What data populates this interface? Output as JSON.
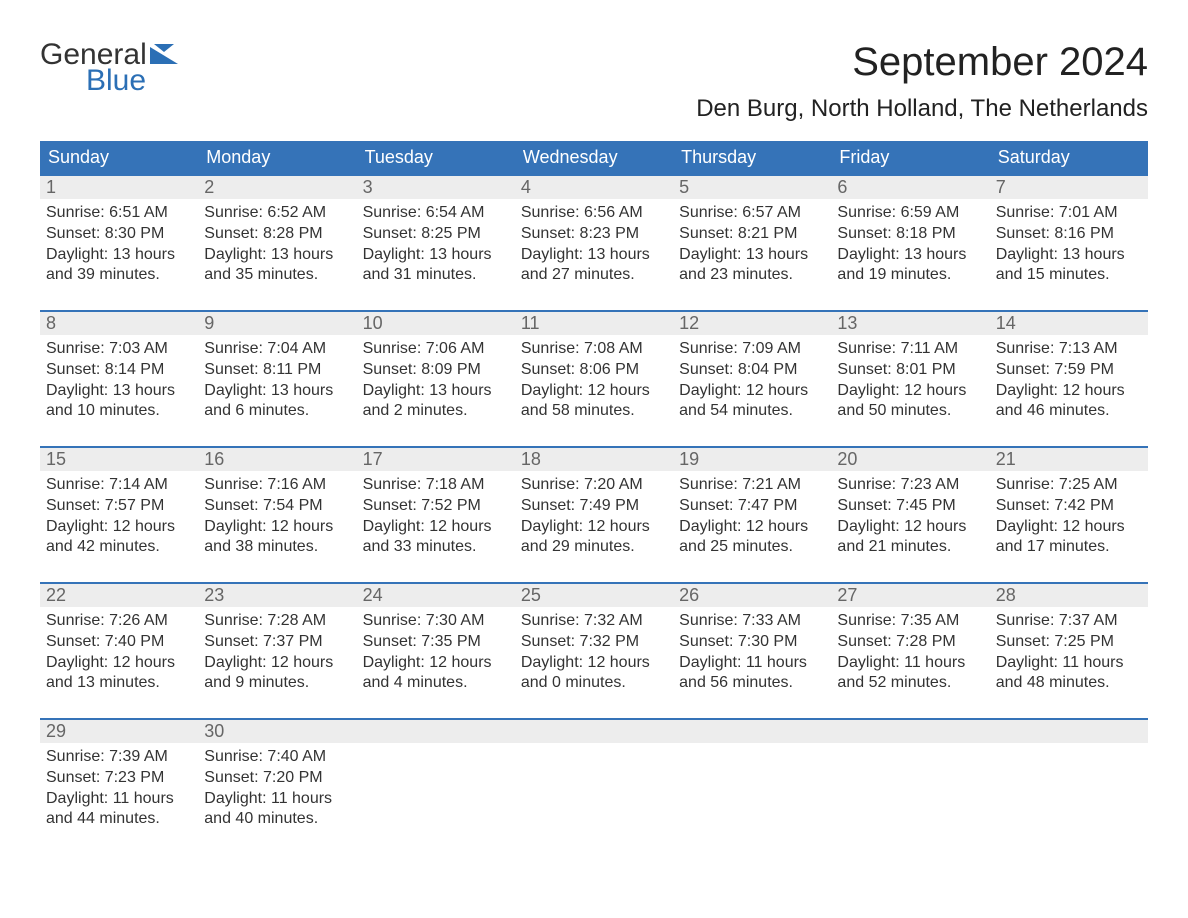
{
  "logo": {
    "top": "General",
    "bottom": "Blue"
  },
  "title": "September 2024",
  "location": "Den Burg, North Holland, The Netherlands",
  "colors": {
    "header_bg": "#3573b8",
    "header_text": "#ffffff",
    "daynum_bg": "#ededed",
    "daynum_text": "#666666",
    "body_text": "#333333",
    "week_border": "#3573b8",
    "logo_blue": "#2b6fb5",
    "page_bg": "#ffffff"
  },
  "typography": {
    "title_fontsize": 40,
    "location_fontsize": 24,
    "dow_fontsize": 18,
    "daynum_fontsize": 18,
    "body_fontsize": 16
  },
  "layout": {
    "columns": 7,
    "rows": 5,
    "first_day": "Sunday"
  },
  "days_of_week": [
    "Sunday",
    "Monday",
    "Tuesday",
    "Wednesday",
    "Thursday",
    "Friday",
    "Saturday"
  ],
  "days": [
    {
      "n": "1",
      "sunrise": "6:51 AM",
      "sunset": "8:30 PM",
      "dl_h": 13,
      "dl_m": 39
    },
    {
      "n": "2",
      "sunrise": "6:52 AM",
      "sunset": "8:28 PM",
      "dl_h": 13,
      "dl_m": 35
    },
    {
      "n": "3",
      "sunrise": "6:54 AM",
      "sunset": "8:25 PM",
      "dl_h": 13,
      "dl_m": 31
    },
    {
      "n": "4",
      "sunrise": "6:56 AM",
      "sunset": "8:23 PM",
      "dl_h": 13,
      "dl_m": 27
    },
    {
      "n": "5",
      "sunrise": "6:57 AM",
      "sunset": "8:21 PM",
      "dl_h": 13,
      "dl_m": 23
    },
    {
      "n": "6",
      "sunrise": "6:59 AM",
      "sunset": "8:18 PM",
      "dl_h": 13,
      "dl_m": 19
    },
    {
      "n": "7",
      "sunrise": "7:01 AM",
      "sunset": "8:16 PM",
      "dl_h": 13,
      "dl_m": 15
    },
    {
      "n": "8",
      "sunrise": "7:03 AM",
      "sunset": "8:14 PM",
      "dl_h": 13,
      "dl_m": 10
    },
    {
      "n": "9",
      "sunrise": "7:04 AM",
      "sunset": "8:11 PM",
      "dl_h": 13,
      "dl_m": 6
    },
    {
      "n": "10",
      "sunrise": "7:06 AM",
      "sunset": "8:09 PM",
      "dl_h": 13,
      "dl_m": 2
    },
    {
      "n": "11",
      "sunrise": "7:08 AM",
      "sunset": "8:06 PM",
      "dl_h": 12,
      "dl_m": 58
    },
    {
      "n": "12",
      "sunrise": "7:09 AM",
      "sunset": "8:04 PM",
      "dl_h": 12,
      "dl_m": 54
    },
    {
      "n": "13",
      "sunrise": "7:11 AM",
      "sunset": "8:01 PM",
      "dl_h": 12,
      "dl_m": 50
    },
    {
      "n": "14",
      "sunrise": "7:13 AM",
      "sunset": "7:59 PM",
      "dl_h": 12,
      "dl_m": 46
    },
    {
      "n": "15",
      "sunrise": "7:14 AM",
      "sunset": "7:57 PM",
      "dl_h": 12,
      "dl_m": 42
    },
    {
      "n": "16",
      "sunrise": "7:16 AM",
      "sunset": "7:54 PM",
      "dl_h": 12,
      "dl_m": 38
    },
    {
      "n": "17",
      "sunrise": "7:18 AM",
      "sunset": "7:52 PM",
      "dl_h": 12,
      "dl_m": 33
    },
    {
      "n": "18",
      "sunrise": "7:20 AM",
      "sunset": "7:49 PM",
      "dl_h": 12,
      "dl_m": 29
    },
    {
      "n": "19",
      "sunrise": "7:21 AM",
      "sunset": "7:47 PM",
      "dl_h": 12,
      "dl_m": 25
    },
    {
      "n": "20",
      "sunrise": "7:23 AM",
      "sunset": "7:45 PM",
      "dl_h": 12,
      "dl_m": 21
    },
    {
      "n": "21",
      "sunrise": "7:25 AM",
      "sunset": "7:42 PM",
      "dl_h": 12,
      "dl_m": 17
    },
    {
      "n": "22",
      "sunrise": "7:26 AM",
      "sunset": "7:40 PM",
      "dl_h": 12,
      "dl_m": 13
    },
    {
      "n": "23",
      "sunrise": "7:28 AM",
      "sunset": "7:37 PM",
      "dl_h": 12,
      "dl_m": 9
    },
    {
      "n": "24",
      "sunrise": "7:30 AM",
      "sunset": "7:35 PM",
      "dl_h": 12,
      "dl_m": 4
    },
    {
      "n": "25",
      "sunrise": "7:32 AM",
      "sunset": "7:32 PM",
      "dl_h": 12,
      "dl_m": 0
    },
    {
      "n": "26",
      "sunrise": "7:33 AM",
      "sunset": "7:30 PM",
      "dl_h": 11,
      "dl_m": 56
    },
    {
      "n": "27",
      "sunrise": "7:35 AM",
      "sunset": "7:28 PM",
      "dl_h": 11,
      "dl_m": 52
    },
    {
      "n": "28",
      "sunrise": "7:37 AM",
      "sunset": "7:25 PM",
      "dl_h": 11,
      "dl_m": 48
    },
    {
      "n": "29",
      "sunrise": "7:39 AM",
      "sunset": "7:23 PM",
      "dl_h": 11,
      "dl_m": 44
    },
    {
      "n": "30",
      "sunrise": "7:40 AM",
      "sunset": "7:20 PM",
      "dl_h": 11,
      "dl_m": 40
    }
  ],
  "labels": {
    "sunrise_prefix": "Sunrise: ",
    "sunset_prefix": "Sunset: ",
    "daylight_prefix": "Daylight: ",
    "hours_word": " hours",
    "and_word": "and ",
    "minutes_word": " minutes."
  }
}
